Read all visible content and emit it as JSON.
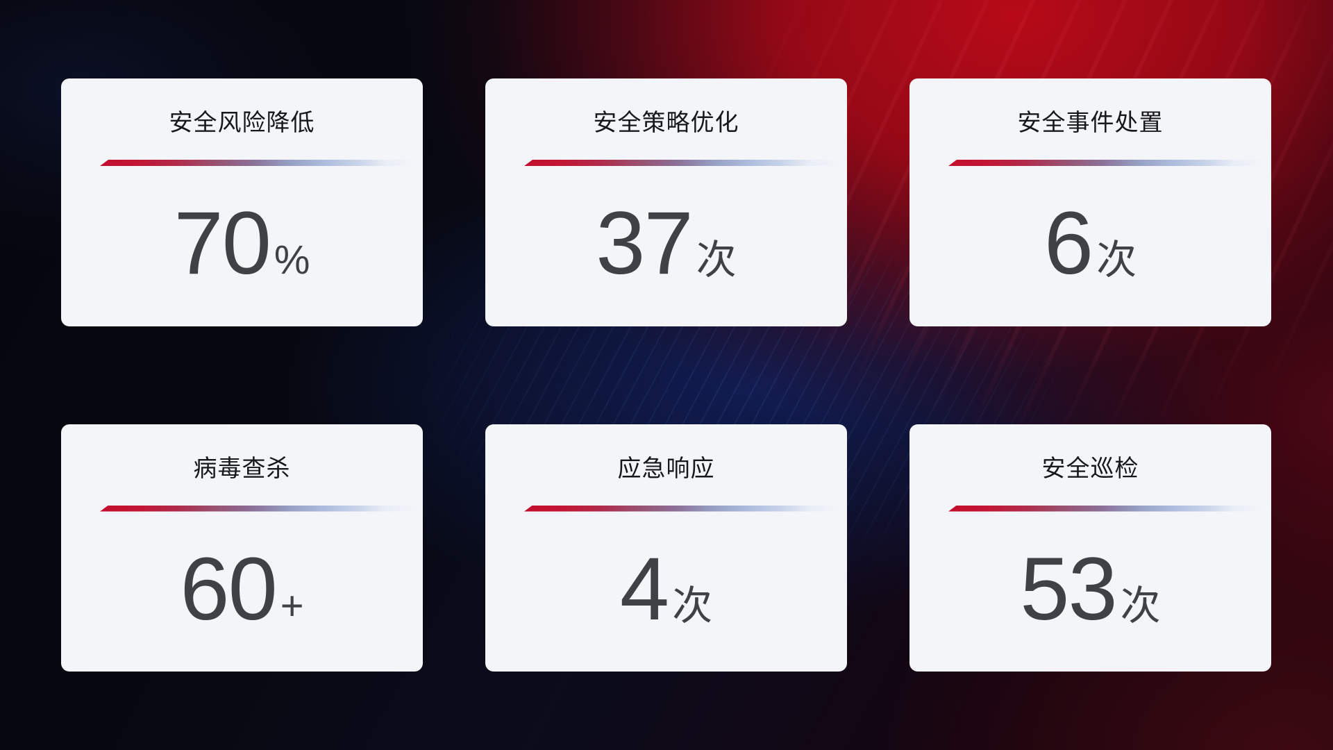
{
  "chart_data": {
    "type": "table",
    "categories": [
      "安全风险降低",
      "安全策略优化",
      "安全事件处置",
      "病毒查杀",
      "应急响应",
      "安全巡检"
    ],
    "values": [
      70,
      37,
      6,
      60,
      4,
      53
    ],
    "units": [
      "%",
      "次",
      "次",
      "+",
      "次",
      "次"
    ]
  },
  "cards": [
    {
      "label": "安全风险降低",
      "value": "70",
      "unit": "%"
    },
    {
      "label": "安全策略优化",
      "value": "37",
      "unit": "次"
    },
    {
      "label": "安全事件处置",
      "value": "6",
      "unit": "次"
    },
    {
      "label": "病毒查杀",
      "value": "60",
      "unit": "+"
    },
    {
      "label": "应急响应",
      "value": "4",
      "unit": "次"
    },
    {
      "label": "安全巡检",
      "value": "53",
      "unit": "次"
    }
  ],
  "colors": {
    "card_background": "#f4f5f9",
    "title_text": "#17181b",
    "value_text": "#3e4146",
    "divider_red": "#c30e2d",
    "divider_blue": "#aebdde",
    "background_red_glow": "#a50a18",
    "background_navy": "#0a0c1c",
    "background_blue_glow": "#12204f",
    "background_maroon": "#400a12"
  }
}
